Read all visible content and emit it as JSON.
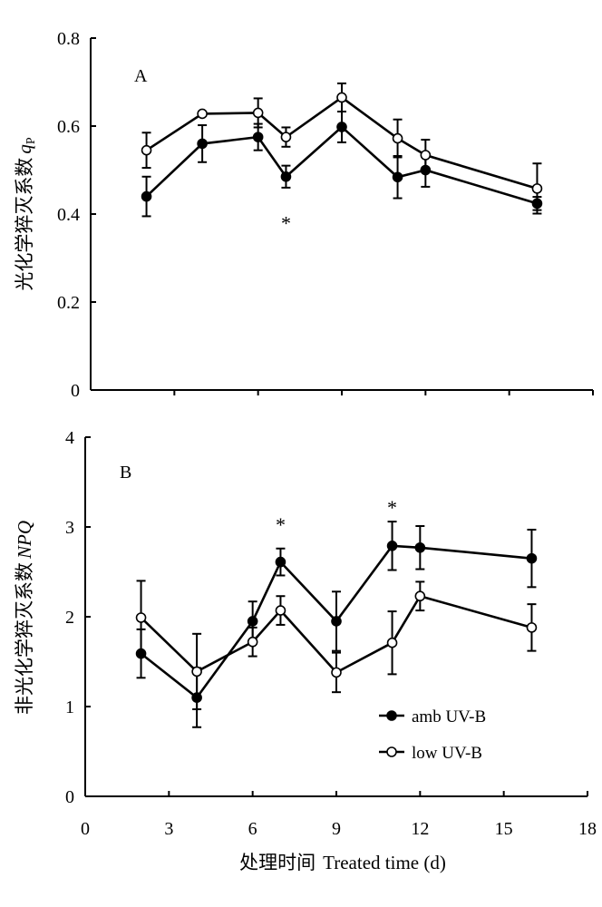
{
  "legend": [
    {
      "label": "amb UV-B",
      "marker": "filled-circle"
    },
    {
      "label": "low UV-B",
      "marker": "open-circle"
    }
  ],
  "chart_data": [
    {
      "type": "line",
      "panel_label": "A",
      "ylabel_cn": "光化学猝灭系数",
      "ylabel_sym": "q",
      "ylabel_sub": "P",
      "xlim": [
        0,
        18
      ],
      "ylim": [
        0,
        0.8
      ],
      "yticks": [
        "0",
        "0.2",
        "0.4",
        "0.6",
        "0.8"
      ],
      "grid": false,
      "series": [
        {
          "name": "amb UV-B",
          "marker": "filled",
          "x": [
            2,
            4,
            6,
            7,
            9,
            11,
            12,
            16
          ],
          "y": [
            0.44,
            0.56,
            0.575,
            0.485,
            0.598,
            0.484,
            0.5,
            0.424
          ],
          "err": [
            0.045,
            0.042,
            0.03,
            0.025,
            0.035,
            0.048,
            0.038,
            0.015
          ]
        },
        {
          "name": "low UV-B",
          "marker": "open",
          "x": [
            2,
            4,
            6,
            7,
            9,
            11,
            12,
            16
          ],
          "y": [
            0.545,
            0.628,
            0.63,
            0.575,
            0.665,
            0.572,
            0.534,
            0.458
          ],
          "err": [
            0.04,
            0.005,
            0.033,
            0.022,
            0.032,
            0.043,
            0.035,
            0.057
          ]
        }
      ],
      "annotations": [
        {
          "text": "*",
          "x": 7,
          "y": 0.385
        }
      ]
    },
    {
      "type": "line",
      "panel_label": "B",
      "ylabel_cn": "非光化学猝灭系数",
      "ylabel_sym": "NPQ",
      "xlabel_cn": "处理时间",
      "xlabel_en": "Treated time (d)",
      "xlim": [
        0,
        18
      ],
      "ylim": [
        0,
        4
      ],
      "xticks": [
        "0",
        "3",
        "6",
        "9",
        "12",
        "15",
        "18"
      ],
      "yticks": [
        "0",
        "1",
        "2",
        "3",
        "4"
      ],
      "grid": false,
      "series": [
        {
          "name": "amb UV-B",
          "marker": "filled",
          "x": [
            2,
            4,
            6,
            7,
            9,
            11,
            12,
            16
          ],
          "y": [
            1.59,
            1.1,
            1.95,
            2.61,
            1.95,
            2.79,
            2.77,
            2.65
          ],
          "err": [
            0.27,
            0.33,
            0.22,
            0.15,
            0.33,
            0.27,
            0.24,
            0.32
          ]
        },
        {
          "name": "low UV-B",
          "marker": "open",
          "x": [
            2,
            4,
            6,
            7,
            9,
            11,
            12,
            16
          ],
          "y": [
            1.99,
            1.39,
            1.72,
            2.07,
            1.38,
            1.71,
            2.23,
            1.88
          ],
          "err": [
            0.41,
            0.42,
            0.16,
            0.16,
            0.22,
            0.35,
            0.16,
            0.26
          ]
        }
      ],
      "annotations": [
        {
          "text": "*",
          "x": 7,
          "y": 3.05
        },
        {
          "text": "*",
          "x": 11,
          "y": 3.24
        }
      ]
    }
  ]
}
